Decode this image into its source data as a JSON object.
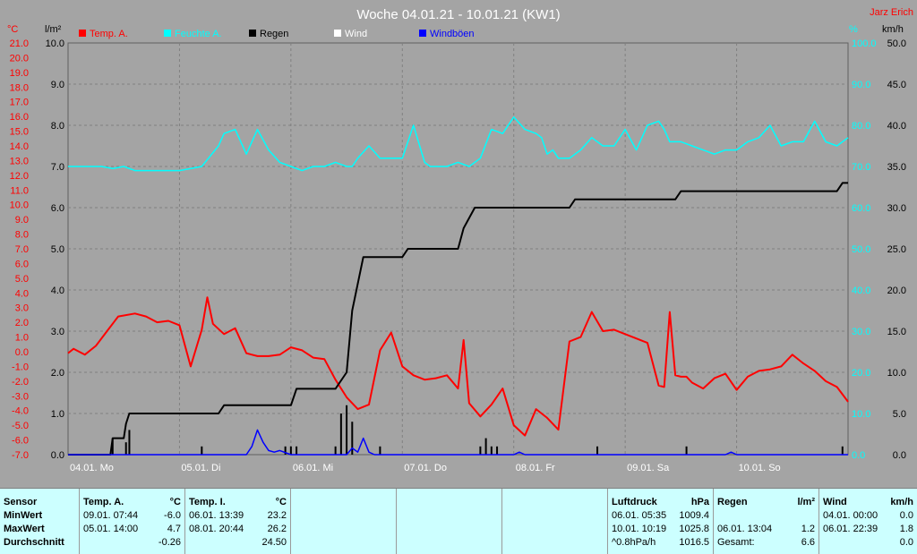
{
  "chart_data": {
    "type": "line",
    "title": "Woche 04.01.21 - 10.01.21 (KW1)",
    "station": "Jarz Erich",
    "legend": [
      {
        "name": "Temp. A.",
        "color": "#ff0000"
      },
      {
        "name": "Feuchte A.",
        "color": "#00ffff"
      },
      {
        "name": "Regen",
        "color": "#000000"
      },
      {
        "name": "Wind",
        "color": "#ffffff"
      },
      {
        "name": "Windböen",
        "color": "#0000ff"
      }
    ],
    "axes": {
      "temp": {
        "unit": "°C",
        "min": -7,
        "max": 21,
        "step": 1,
        "color": "#ff0000"
      },
      "rain": {
        "unit": "l/m²",
        "min": 0,
        "max": 10,
        "step": 1,
        "color": "#000000"
      },
      "humidity": {
        "unit": "%",
        "min": 0,
        "max": 100,
        "step": 10,
        "color": "#00ffff"
      },
      "wind": {
        "unit": "km/h",
        "min": 0,
        "max": 50,
        "step": 5,
        "color": "#000000"
      }
    },
    "x_range_days": [
      0,
      7
    ],
    "x_labels": [
      "04.01. Mo",
      "05.01. Di",
      "06.01. Mi",
      "07.01. Do",
      "08.01. Fr",
      "09.01. Sa",
      "10.01. So"
    ],
    "grid": true,
    "series": [
      {
        "name": "Temp. A.",
        "axis": "temp",
        "color": "#ff0000",
        "x": [
          0,
          0.05,
          0.15,
          0.25,
          0.35,
          0.45,
          0.6,
          0.7,
          0.8,
          0.9,
          1.0,
          1.1,
          1.2,
          1.25,
          1.3,
          1.4,
          1.5,
          1.6,
          1.65,
          1.7,
          1.8,
          1.9,
          2.0,
          2.1,
          2.2,
          2.3,
          2.4,
          2.5,
          2.6,
          2.7,
          2.8,
          2.9,
          3.0,
          3.1,
          3.2,
          3.3,
          3.4,
          3.5,
          3.55,
          3.6,
          3.7,
          3.8,
          3.9,
          4.0,
          4.1,
          4.2,
          4.3,
          4.4,
          4.5,
          4.6,
          4.7,
          4.8,
          4.9,
          5.0,
          5.1,
          5.2,
          5.3,
          5.35,
          5.4,
          5.45,
          5.5,
          5.55,
          5.6,
          5.7,
          5.8,
          5.9,
          6.0,
          6.1,
          6.2,
          6.3,
          6.4,
          6.5,
          6.6,
          6.7,
          6.8,
          6.9,
          7.0
        ],
        "y": [
          -0.1,
          0.2,
          -0.2,
          0.4,
          1.4,
          2.4,
          2.6,
          2.4,
          2.0,
          2.1,
          1.8,
          -1.0,
          1.5,
          3.7,
          1.9,
          1.2,
          1.6,
          -0.1,
          -0.2,
          -0.3,
          -0.3,
          -0.2,
          0.3,
          0.1,
          -0.4,
          -0.5,
          -1.9,
          -3.1,
          -3.9,
          -3.6,
          0.1,
          1.3,
          -1.0,
          -1.6,
          -1.9,
          -1.8,
          -1.6,
          -2.5,
          0.8,
          -3.5,
          -4.4,
          -3.6,
          -2.5,
          -5.0,
          -5.7,
          -3.9,
          -4.5,
          -5.3,
          0.7,
          1.0,
          2.7,
          1.4,
          1.5,
          1.2,
          0.9,
          0.6,
          -2.3,
          -2.4,
          2.7,
          -1.6,
          -1.7,
          -1.7,
          -2.1,
          -2.5,
          -1.8,
          -1.5,
          -2.6,
          -1.7,
          -1.3,
          -1.2,
          -1.0,
          -0.2,
          -0.8,
          -1.3,
          -2.0,
          -2.4,
          -3.4
        ]
      },
      {
        "name": "Feuchte A.",
        "axis": "humidity",
        "color": "#00ffff",
        "x": [
          0,
          0.3,
          0.4,
          0.5,
          0.6,
          0.8,
          1.0,
          1.2,
          1.35,
          1.4,
          1.5,
          1.6,
          1.7,
          1.8,
          1.9,
          2.0,
          2.1,
          2.2,
          2.3,
          2.4,
          2.5,
          2.55,
          2.6,
          2.7,
          2.8,
          2.9,
          3.0,
          3.1,
          3.2,
          3.25,
          3.3,
          3.4,
          3.5,
          3.6,
          3.7,
          3.8,
          3.9,
          4.0,
          4.1,
          4.2,
          4.25,
          4.3,
          4.35,
          4.4,
          4.5,
          4.6,
          4.7,
          4.8,
          4.9,
          5.0,
          5.1,
          5.2,
          5.3,
          5.35,
          5.4,
          5.5,
          5.6,
          5.7,
          5.8,
          5.9,
          6.0,
          6.1,
          6.2,
          6.3,
          6.4,
          6.5,
          6.6,
          6.7,
          6.8,
          6.9,
          7.0
        ],
        "y": [
          70,
          70,
          69.5,
          70,
          69,
          69,
          69,
          70,
          75,
          78,
          79,
          73,
          79,
          74,
          71,
          70,
          69,
          70,
          70,
          71,
          70,
          70,
          72,
          75,
          72,
          72,
          72,
          80,
          71,
          70,
          70,
          70,
          71,
          70,
          72,
          79,
          78,
          82,
          79,
          78,
          77,
          73,
          74,
          72,
          72,
          74,
          77,
          75,
          75,
          79,
          74,
          80,
          81,
          79,
          76,
          76,
          75,
          74,
          73,
          74,
          74,
          76,
          77,
          80,
          75,
          76,
          76,
          81,
          76,
          75,
          77
        ]
      },
      {
        "name": "Regen",
        "axis": "rain",
        "color": "#000000",
        "x": [
          0,
          0.38,
          0.4,
          0.5,
          0.52,
          0.55,
          1.35,
          1.4,
          1.5,
          2.0,
          2.05,
          2.4,
          2.5,
          2.55,
          2.65,
          3.0,
          3.05,
          3.5,
          3.55,
          3.65,
          4.0,
          4.5,
          4.55,
          5.45,
          5.5,
          6.9,
          6.95,
          7.0
        ],
        "y": [
          0,
          0,
          0.4,
          0.4,
          0.75,
          1.0,
          1.0,
          1.2,
          1.2,
          1.2,
          1.6,
          1.6,
          2.0,
          3.5,
          4.8,
          4.8,
          5.0,
          5.0,
          5.5,
          6.0,
          6.0,
          6.0,
          6.2,
          6.2,
          6.4,
          6.4,
          6.6,
          6.6
        ]
      },
      {
        "name": "Windböen",
        "axis": "wind",
        "color": "#0000ff",
        "x": [
          0,
          1.6,
          1.65,
          1.7,
          1.75,
          1.8,
          1.85,
          1.9,
          2.0,
          2.5,
          2.55,
          2.6,
          2.65,
          2.7,
          2.75,
          2.8,
          3.3,
          4.0,
          4.05,
          4.1,
          5.0,
          5.9,
          5.95,
          6.0,
          7.0
        ],
        "y": [
          0,
          0,
          1.0,
          3.0,
          1.5,
          0.5,
          0.3,
          0.5,
          0,
          0,
          0.8,
          0.3,
          2.0,
          0.3,
          0,
          0,
          0,
          0,
          0.3,
          0,
          0,
          0,
          0.3,
          0,
          0
        ]
      }
    ],
    "rain_bars": {
      "x": [
        0.4,
        0.52,
        0.55,
        1.2,
        1.95,
        2.0,
        2.05,
        2.4,
        2.45,
        2.5,
        2.55,
        2.8,
        3.7,
        3.75,
        3.8,
        3.85,
        4.75,
        5.55,
        6.95
      ],
      "y": [
        0.4,
        0.3,
        0.6,
        0.2,
        0.2,
        0.2,
        0.2,
        0.2,
        1.0,
        1.2,
        0.8,
        0.2,
        0.2,
        0.4,
        0.2,
        0.2,
        0.2,
        0.2,
        0.2
      ]
    }
  },
  "stats": {
    "sensor": {
      "header": "Sensor",
      "min": "MinWert",
      "max": "MaxWert",
      "avg": "Durchschnitt"
    },
    "temp_a": {
      "header": "Temp. A.",
      "unit": "°C",
      "min_time": "09.01.  07:44",
      "min_val": "-6.0",
      "max_time": "05.01.  14:00",
      "max_val": "4.7",
      "avg_val": "-0.26"
    },
    "temp_i": {
      "header": "Temp. I.",
      "unit": "°C",
      "min_time": "06.01.  13:39",
      "min_val": "23.2",
      "max_time": "08.01.  20:44",
      "max_val": "26.2",
      "avg_val": "24.50"
    },
    "pressure": {
      "header": "Luftdruck",
      "unit": "hPa",
      "min_time": "06.01.  05:35",
      "min_val": "1009.4",
      "max_time": "10.01.  10:19",
      "max_val": "1025.8",
      "avg_label": "^0.8hPa/h",
      "avg_val": "1016.5"
    },
    "rain": {
      "header": "Regen",
      "unit": "l/m²",
      "max_time": "06.01.  13:04",
      "max_val": "1.2",
      "total_label": "Gesamt:",
      "total_val": "6.6"
    },
    "wind": {
      "header": "Wind",
      "unit": "km/h",
      "min_time": "04.01.  00:00",
      "min_val": "0.0",
      "max_time": "06.01.  22:39",
      "max_val": "1.8",
      "avg_val": "0.0"
    }
  }
}
